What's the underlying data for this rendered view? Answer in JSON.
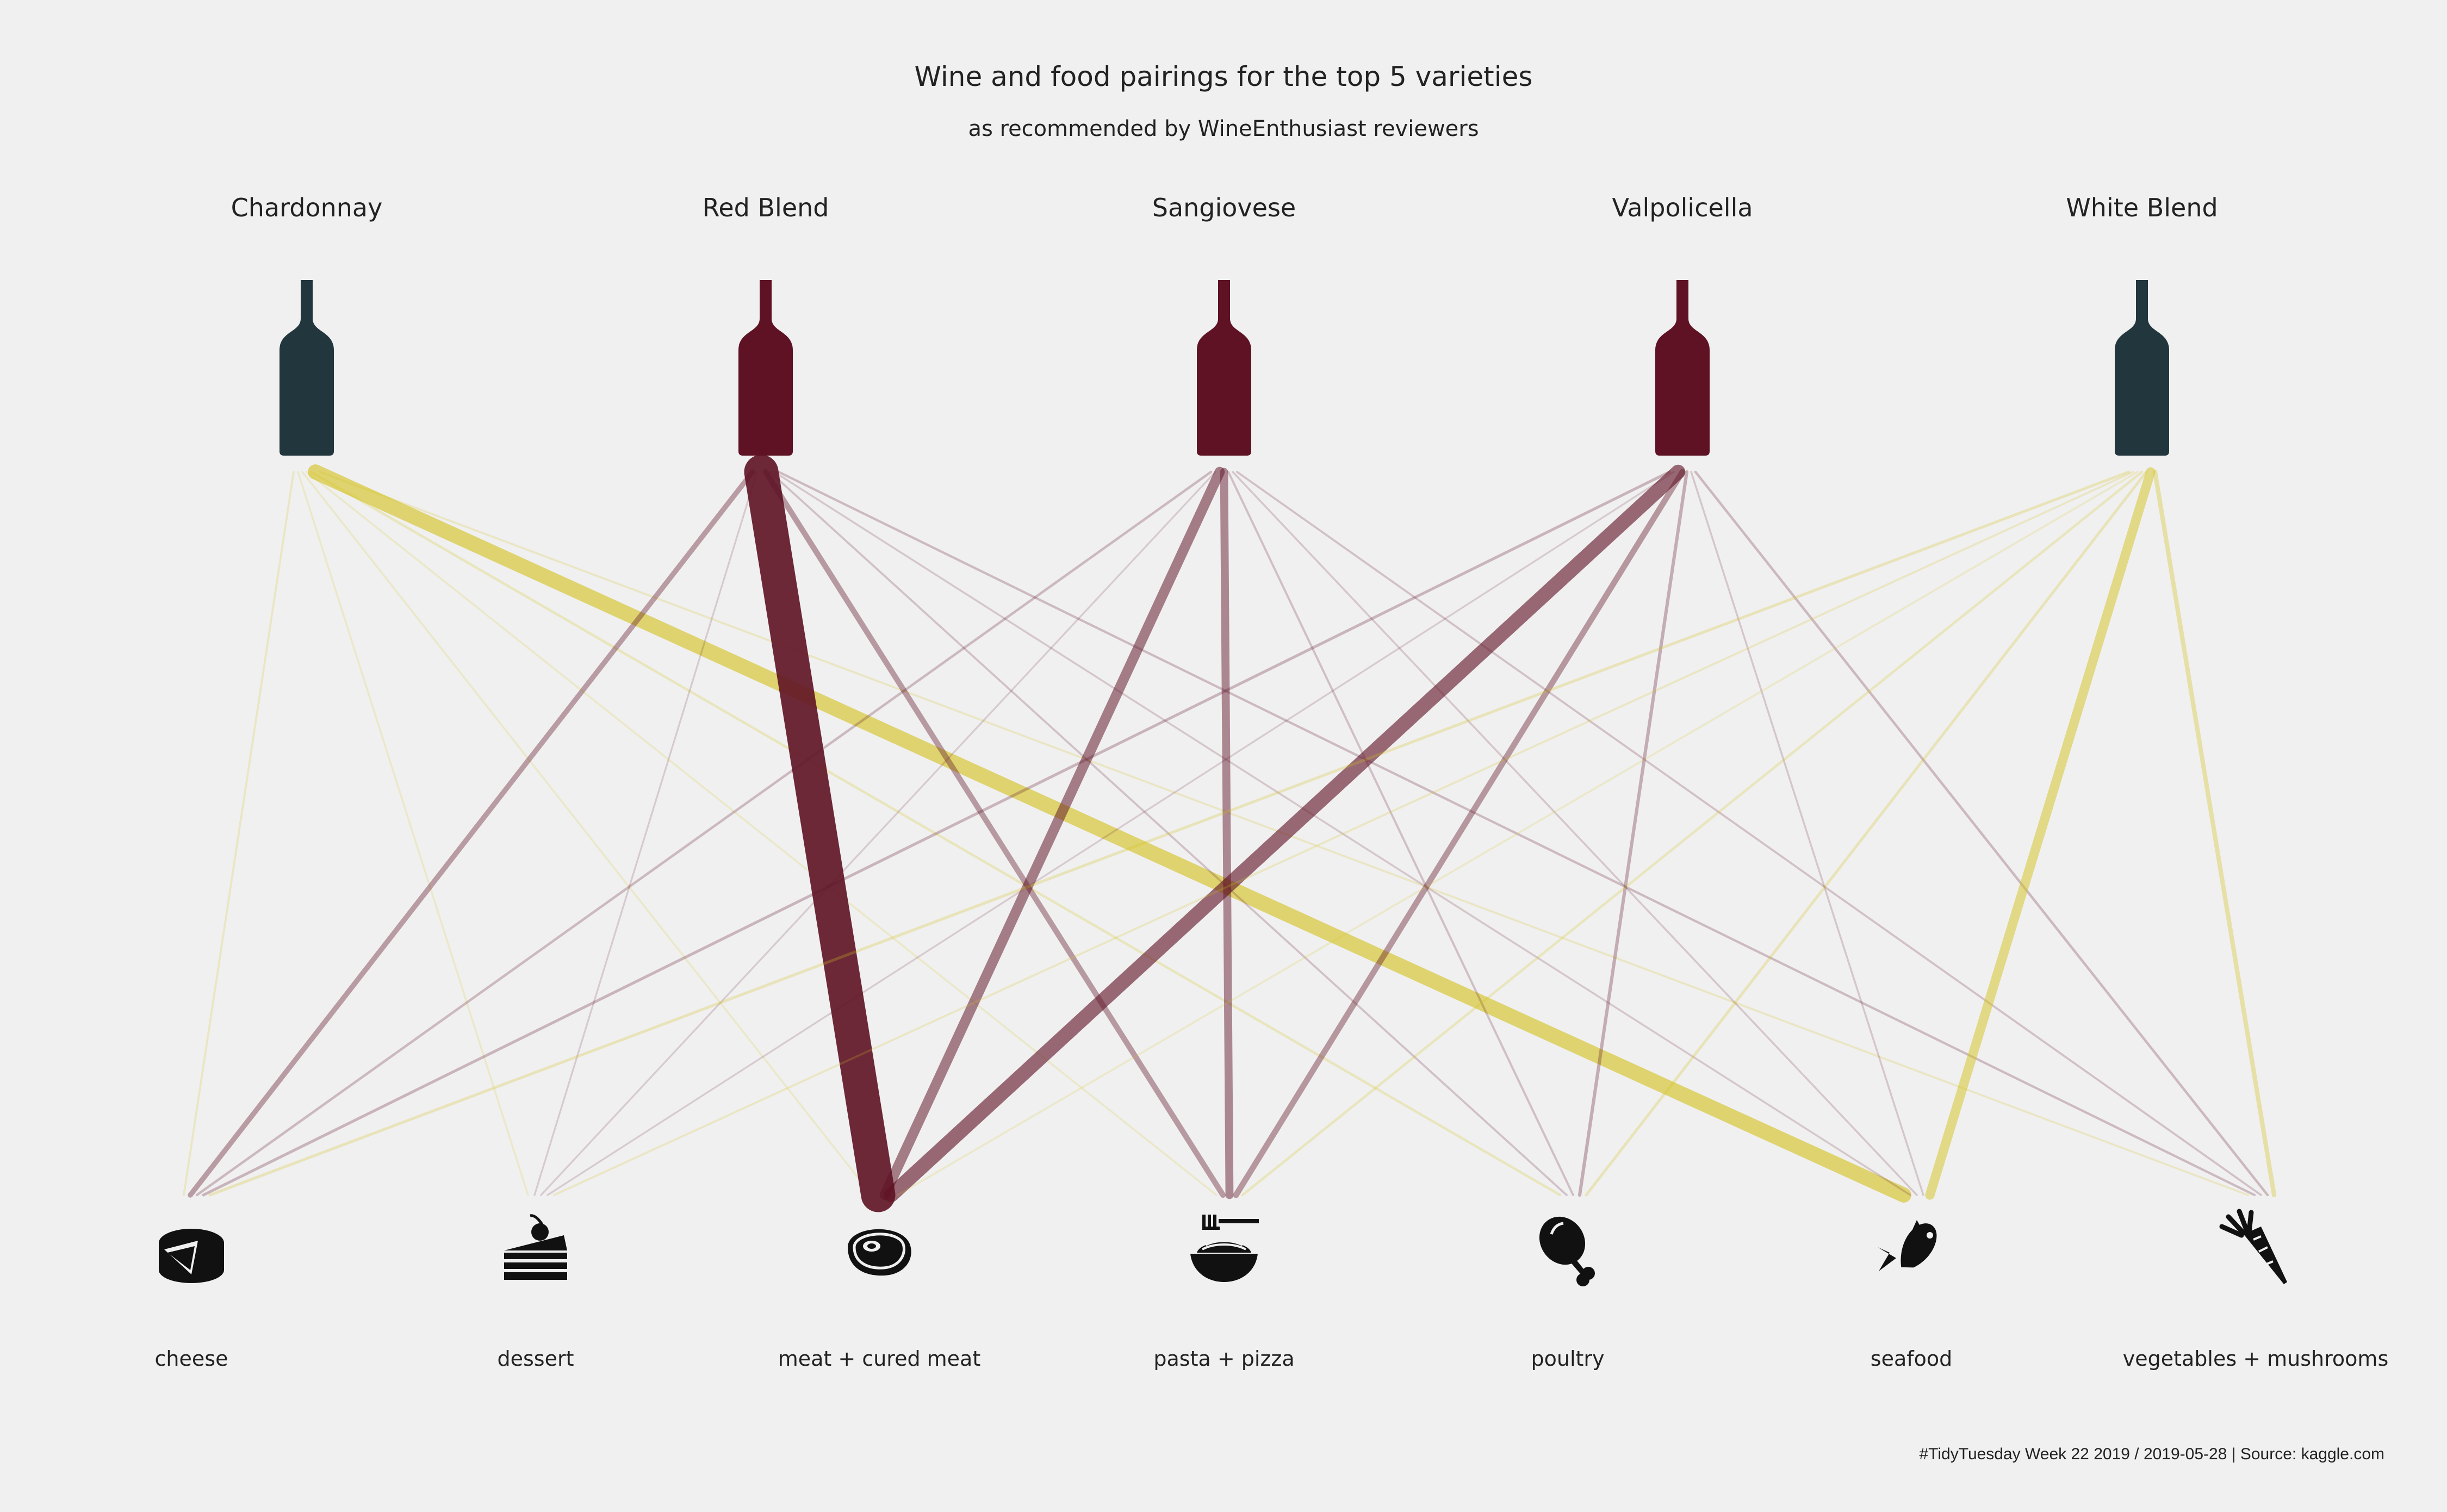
{
  "chart_data": {
    "type": "bipartite-flow",
    "title": "Wine and food pairings for the top 5 varieties",
    "subtitle": "as recommended by WineEnthusiast reviewers",
    "caption": "#TidyTuesday Week 22 2019 / 2019-05-28 | Source: kaggle.com",
    "wines": [
      {
        "name": "Chardonnay",
        "type": "white"
      },
      {
        "name": "Red Blend",
        "type": "red"
      },
      {
        "name": "Sangiovese",
        "type": "red"
      },
      {
        "name": "Valpolicella",
        "type": "red"
      },
      {
        "name": "White Blend",
        "type": "white"
      }
    ],
    "foods": [
      {
        "name": "cheese",
        "icon": "cheese-icon"
      },
      {
        "name": "dessert",
        "icon": "cake-icon"
      },
      {
        "name": "meat + cured meat",
        "icon": "steak-icon"
      },
      {
        "name": "pasta + pizza",
        "icon": "pasta-bowl-icon"
      },
      {
        "name": "poultry",
        "icon": "drumstick-icon"
      },
      {
        "name": "seafood",
        "icon": "fish-icon"
      },
      {
        "name": "vegetables + mushrooms",
        "icon": "carrot-icon"
      }
    ],
    "colors": {
      "red": "#5e1224",
      "white": "#d4c21e",
      "bottle_red": "#5e1224",
      "bottle_white": "#22363d"
    },
    "links": [
      {
        "wine": "Chardonnay",
        "food": "cheese",
        "count": 3
      },
      {
        "wine": "Chardonnay",
        "food": "dessert",
        "count": 2
      },
      {
        "wine": "Chardonnay",
        "food": "meat + cured meat",
        "count": 2
      },
      {
        "wine": "Chardonnay",
        "food": "pasta + pizza",
        "count": 2
      },
      {
        "wine": "Chardonnay",
        "food": "poultry",
        "count": 6
      },
      {
        "wine": "Chardonnay",
        "food": "seafood",
        "count": 95
      },
      {
        "wine": "Chardonnay",
        "food": "vegetables + mushrooms",
        "count": 3
      },
      {
        "wine": "Red Blend",
        "food": "cheese",
        "count": 25
      },
      {
        "wine": "Red Blend",
        "food": "dessert",
        "count": 1
      },
      {
        "wine": "Red Blend",
        "food": "meat + cured meat",
        "count": 230
      },
      {
        "wine": "Red Blend",
        "food": "pasta + pizza",
        "count": 28
      },
      {
        "wine": "Red Blend",
        "food": "poultry",
        "count": 3
      },
      {
        "wine": "Red Blend",
        "food": "seafood",
        "count": 2
      },
      {
        "wine": "Red Blend",
        "food": "vegetables + mushrooms",
        "count": 5
      },
      {
        "wine": "Sangiovese",
        "food": "cheese",
        "count": 6
      },
      {
        "wine": "Sangiovese",
        "food": "dessert",
        "count": 1
      },
      {
        "wine": "Sangiovese",
        "food": "meat + cured meat",
        "count": 60
      },
      {
        "wine": "Sangiovese",
        "food": "pasta + pizza",
        "count": 45
      },
      {
        "wine": "Sangiovese",
        "food": "poultry",
        "count": 4
      },
      {
        "wine": "Sangiovese",
        "food": "seafood",
        "count": 2
      },
      {
        "wine": "Sangiovese",
        "food": "vegetables + mushrooms",
        "count": 3
      },
      {
        "wine": "Valpolicella",
        "food": "cheese",
        "count": 8
      },
      {
        "wine": "Valpolicella",
        "food": "dessert",
        "count": 1
      },
      {
        "wine": "Valpolicella",
        "food": "meat + cured meat",
        "count": 90
      },
      {
        "wine": "Valpolicella",
        "food": "pasta + pizza",
        "count": 30
      },
      {
        "wine": "Valpolicella",
        "food": "poultry",
        "count": 12
      },
      {
        "wine": "Valpolicella",
        "food": "seafood",
        "count": 2
      },
      {
        "wine": "Valpolicella",
        "food": "vegetables + mushrooms",
        "count": 6
      },
      {
        "wine": "White Blend",
        "food": "cheese",
        "count": 8
      },
      {
        "wine": "White Blend",
        "food": "dessert",
        "count": 3
      },
      {
        "wine": "White Blend",
        "food": "meat + cured meat",
        "count": 2
      },
      {
        "wine": "White Blend",
        "food": "pasta + pizza",
        "count": 6
      },
      {
        "wine": "White Blend",
        "food": "poultry",
        "count": 8
      },
      {
        "wine": "White Blend",
        "food": "seafood",
        "count": 55
      },
      {
        "wine": "White Blend",
        "food": "vegetables + mushrooms",
        "count": 20
      }
    ]
  }
}
